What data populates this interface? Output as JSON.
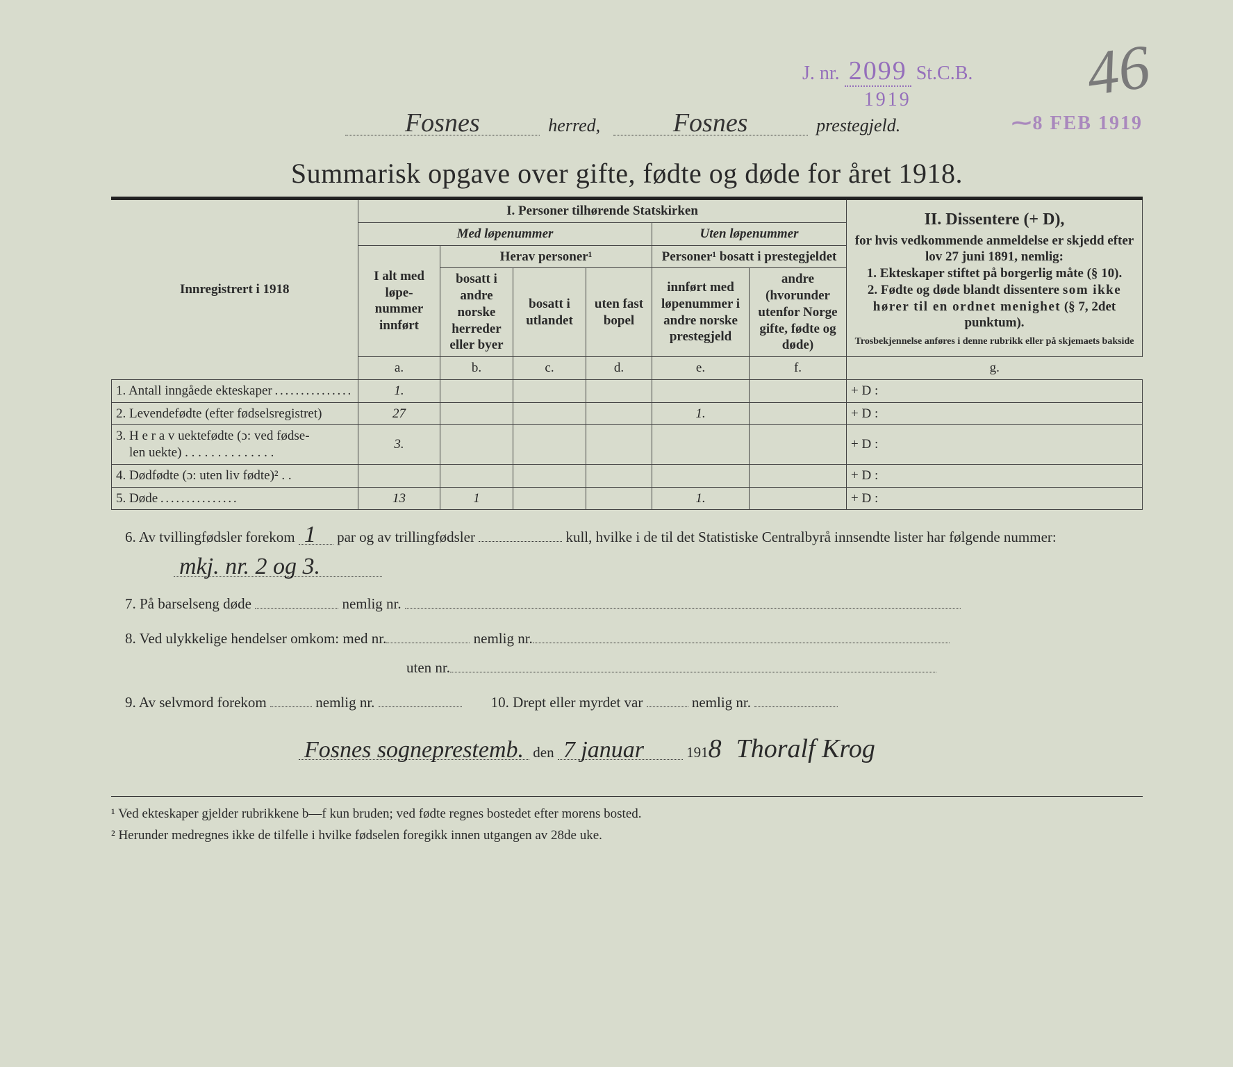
{
  "stamps": {
    "jnr_prefix": "J. nr.",
    "jnr_number": "2099",
    "jnr_suffix": "St.C.B.",
    "jnr_year": "1919",
    "page_number": "46",
    "received_stamp": "⁓8 FEB 1919"
  },
  "header": {
    "herred_value": "Fosnes",
    "herred_label": "herred,",
    "prestegjeld_value": "Fosnes",
    "prestegjeld_label": "prestegjeld.",
    "title": "Summarisk opgave over gifte, fødte og døde for året 1918."
  },
  "table_headers": {
    "innregistrert": "Innregistrert i 1918",
    "section_i": "I.  Personer tilhørende Statskirken",
    "med_lope": "Med løpenummer",
    "uten_lope": "Uten løpenummer",
    "ialt": "I alt med løpe-nummer innført",
    "herav_personer": "Herav personer¹",
    "personer_bosatt": "Personer¹ bosatt i prestegjeldet",
    "col_b": "bosatt i andre norske herreder eller byer",
    "col_c": "bosatt i utlandet",
    "col_d": "uten fast bopel",
    "col_e": "innført med løpenummer i andre norske prestegjeld",
    "col_f": "andre (hvorunder utenfor Norge gifte, fødte og døde)",
    "section_ii_title": "II.  Dissentere (+ D),",
    "section_ii_body1": "for hvis vedkommende anmeldelse er skjedd efter lov 27 juni 1891, nemlig:",
    "section_ii_li1a": "1. Ekteskaper stiftet ",
    "section_ii_li1b": "på borgerlig måte",
    "section_ii_li1c": " (§ 10).",
    "section_ii_li2a": "2. Fødte og døde blandt dissentere ",
    "section_ii_li2b": "som ikke hører til en ordnet menighet",
    "section_ii_li2c": " (§ 7, 2det punktum).",
    "section_ii_small": "Trosbekjennelse anføres i denne rubrikk eller på skjemaets bakside",
    "letters": {
      "a": "a.",
      "b": "b.",
      "c": "c.",
      "d": "d.",
      "e": "e.",
      "f": "f.",
      "g": "g."
    }
  },
  "rows": [
    {
      "num": "1.",
      "label": "Antall inngåede ekteskaper",
      "a": "1.",
      "b": "",
      "c": "",
      "d": "",
      "e": "",
      "f": "",
      "g": "+ D :"
    },
    {
      "num": "2.",
      "label": "Levendefødte (efter fødselsregistret)",
      "a": "27",
      "b": "",
      "c": "",
      "d": "",
      "e": "1.",
      "f": "",
      "g": "+ D :"
    },
    {
      "num": "3.",
      "label": "Herav uektefødte (ɔ: ved fødselen uekte)",
      "a": "3.",
      "b": "",
      "c": "",
      "d": "",
      "e": "",
      "f": "",
      "g": "+ D :"
    },
    {
      "num": "4.",
      "label": "Dødfødte (ɔ: uten liv fødte)²",
      "a": "",
      "b": "",
      "c": "",
      "d": "",
      "e": "",
      "f": "",
      "g": "+ D :"
    },
    {
      "num": "5.",
      "label": "Døde",
      "a": "13",
      "b": "1",
      "c": "",
      "d": "",
      "e": "1.",
      "f": "",
      "g": "+ D :"
    }
  ],
  "below": {
    "item6a": "6.  Av tvillingfødsler forekom ",
    "item6_twin": "1",
    "item6b": " par og av trillingfødsler ",
    "item6_trip": "",
    "item6c": " kull, hvilke i de til det Statistiske Centralbyrå innsendte lister har følgende nummer:",
    "item6_numbers": "mkj. nr. 2 og 3.",
    "item7": "7.  På barselseng døde ",
    "item7b": " nemlig nr. ",
    "item8": "8.  Ved ulykkelige hendelser omkom:  med nr.",
    "item8b": " nemlig nr.",
    "item8c": "uten nr.",
    "item9": "9.  Av selvmord forekom ",
    "item9b": " nemlig nr. ",
    "item10": "10.   Drept eller myrdet var ",
    "item10b": " nemlig nr. ",
    "place": "Fosnes sogneprestemb.",
    "den": " den ",
    "date": "7 januar",
    "year_prefix": " 191",
    "year_digit": "8",
    "signature": "Thoralf Krog"
  },
  "footnotes": {
    "f1": "¹   Ved ekteskaper gjelder rubrikkene b—f kun bruden; ved fødte regnes bostedet efter morens bosted.",
    "f2": "²   Herunder medregnes ikke de tilfelle i hvilke fødselen foregikk innen utgangen av 28de uke."
  },
  "colors": {
    "background": "#d8dccd",
    "text": "#2a2a2a",
    "stamp_purple": "#8a5cb8",
    "handwriting": "#222222"
  }
}
